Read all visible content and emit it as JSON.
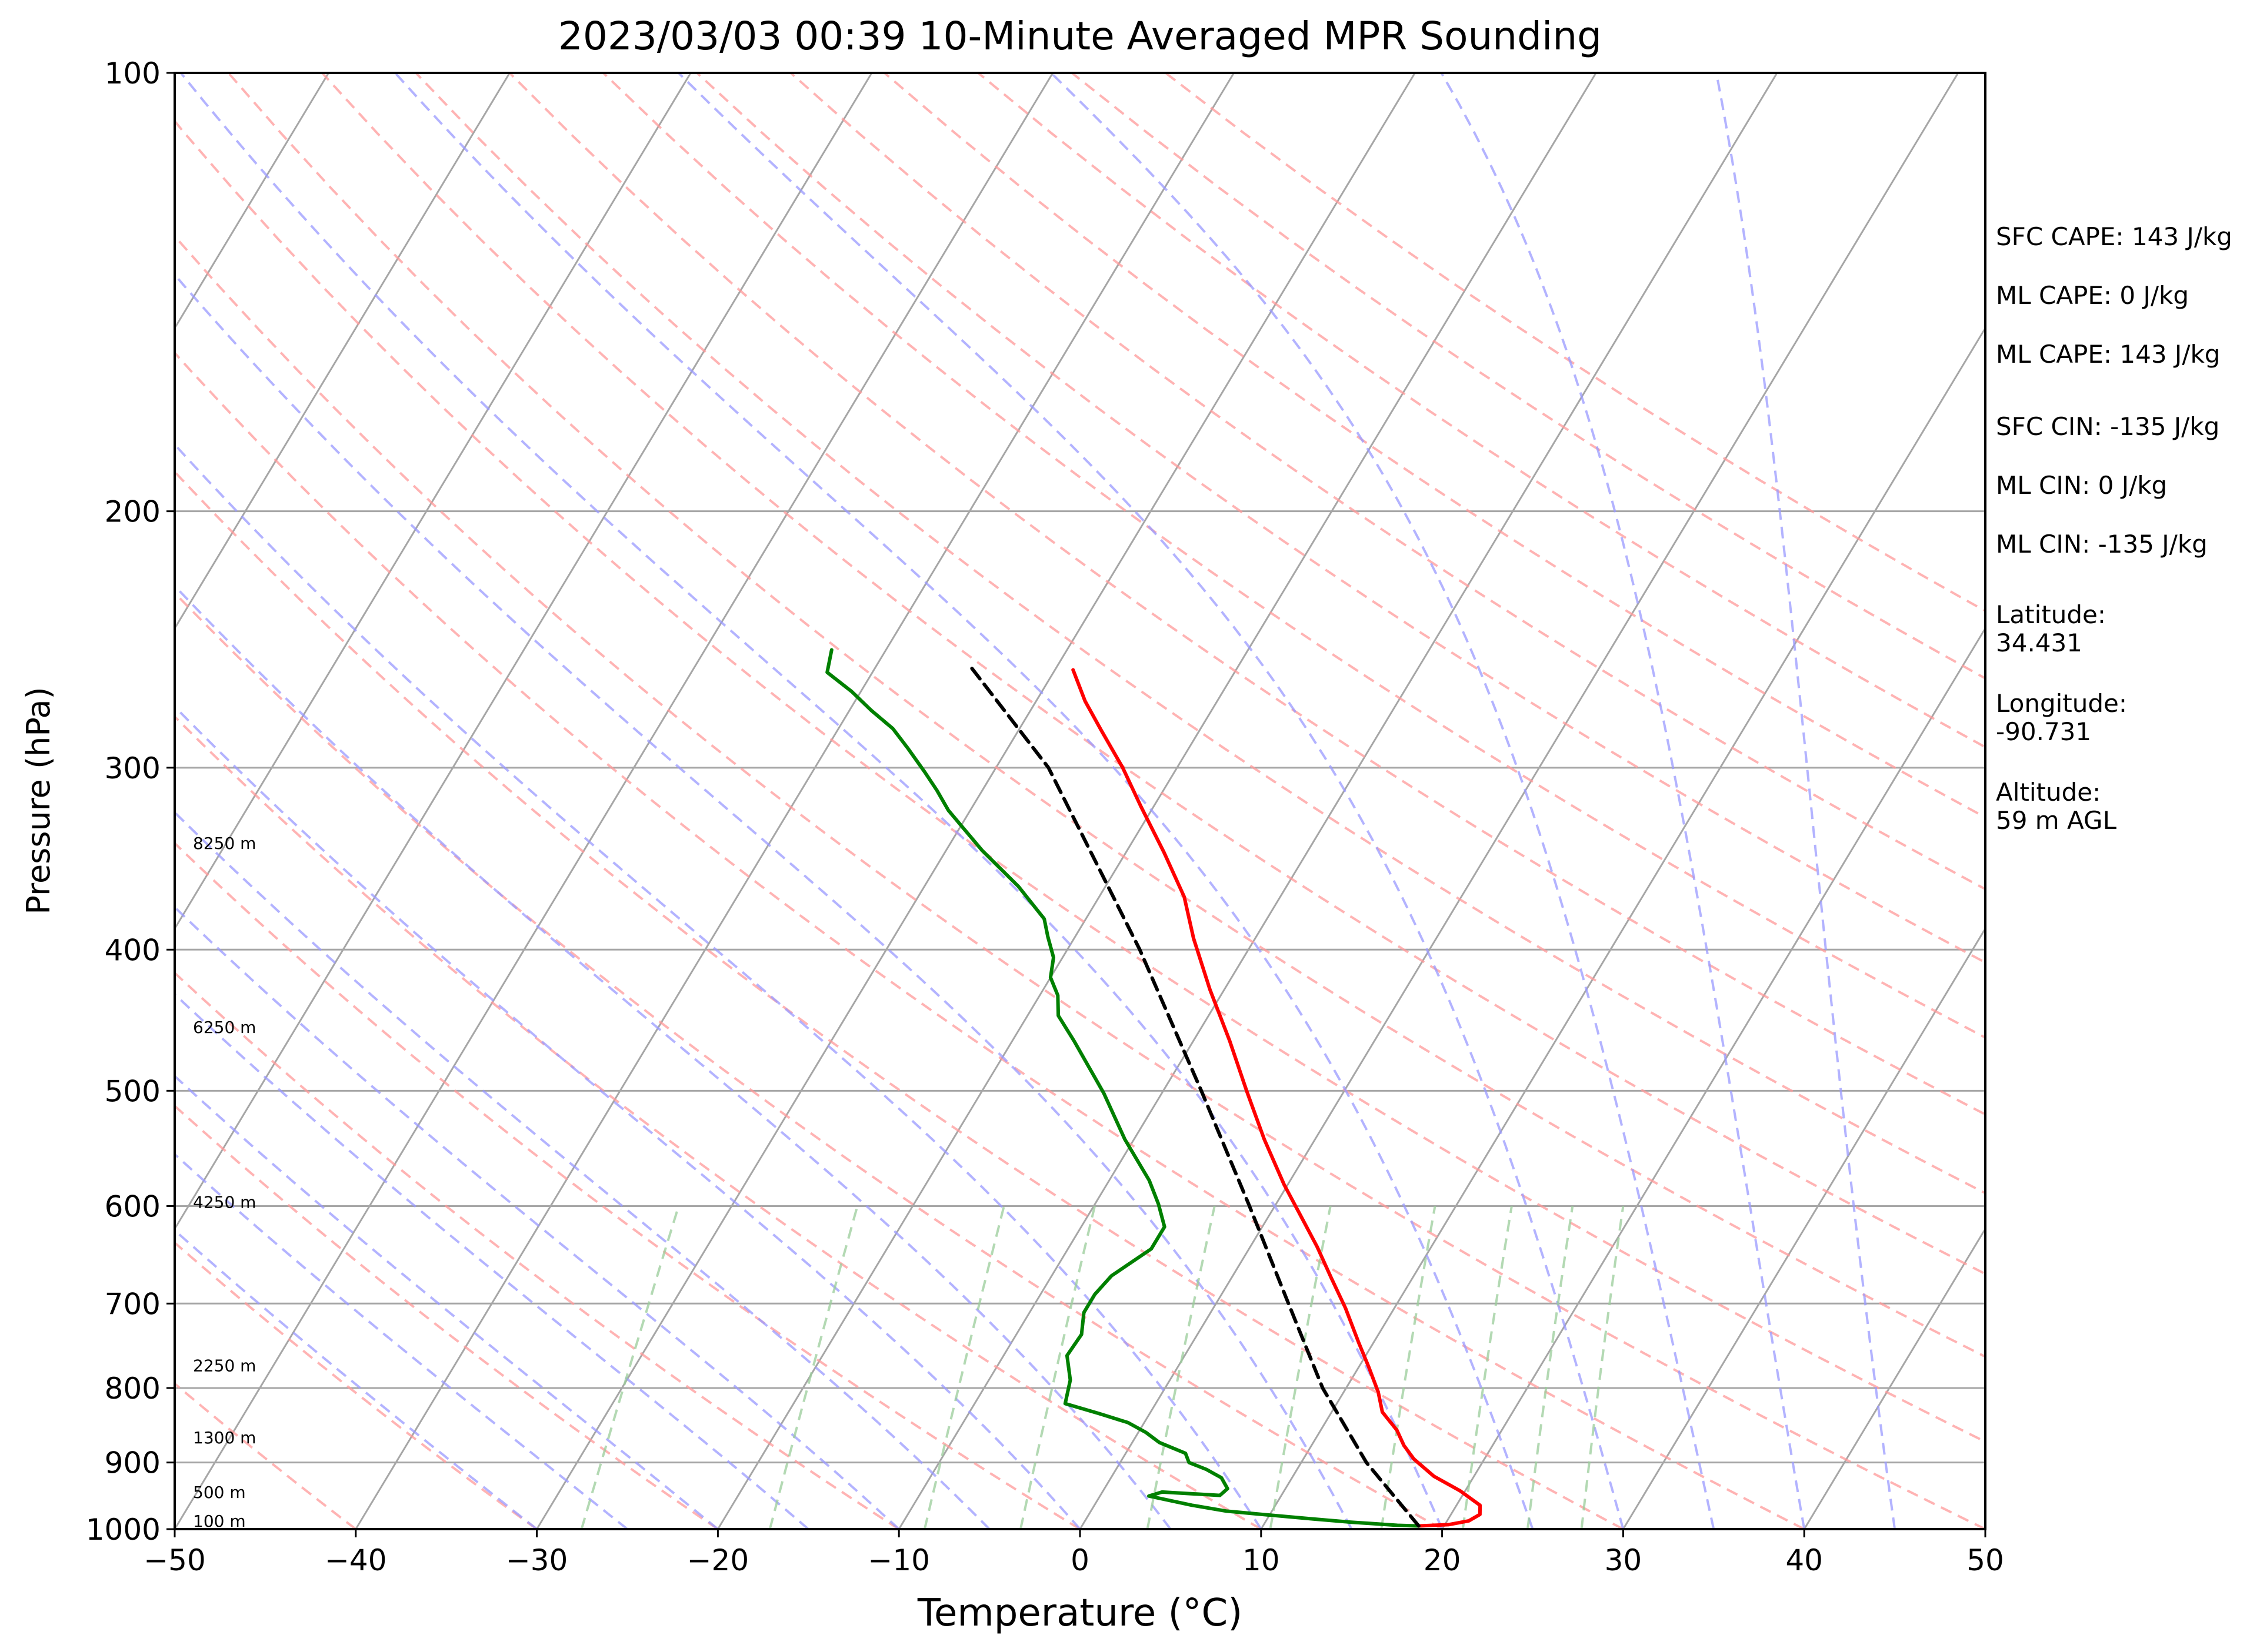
{
  "chart_data": {
    "type": "line",
    "title": "2023/03/03 00:39 10-Minute Averaged MPR Sounding",
    "xlabel": "Temperature (°C)",
    "ylabel": "Pressure (hPa)",
    "xlim": [
      -50,
      50
    ],
    "ylim": [
      1000,
      100
    ],
    "y_scale": "log",
    "skew_per_decade_of_pressure": 48.5,
    "grid": true,
    "x_ticks": [
      -50,
      -40,
      -30,
      -20,
      -10,
      0,
      10,
      20,
      30,
      40,
      50
    ],
    "x_tick_labels": [
      "−50",
      "−40",
      "−30",
      "−20",
      "−10",
      "0",
      "10",
      "20",
      "30",
      "40",
      "50"
    ],
    "y_ticks": [
      1000,
      900,
      800,
      700,
      600,
      500,
      400,
      300,
      200,
      100
    ],
    "y_tick_labels": [
      "1000",
      "900",
      "800",
      "700",
      "600",
      "500",
      "400",
      "300",
      "200",
      "100"
    ],
    "height_labels": [
      {
        "label": "100 m",
        "pressure": 987
      },
      {
        "label": "500 m",
        "pressure": 943
      },
      {
        "label": "1300 m",
        "pressure": 865
      },
      {
        "label": "2250 m",
        "pressure": 772
      },
      {
        "label": "4250 m",
        "pressure": 596
      },
      {
        "label": "6250 m",
        "pressure": 452
      },
      {
        "label": "8250 m",
        "pressure": 338
      }
    ],
    "series": [
      {
        "color": "#ff0000",
        "style": "solid",
        "points": [
          [
            18.6,
            995
          ],
          [
            20.2,
            993
          ],
          [
            21.2,
            987
          ],
          [
            21.6,
            977
          ],
          [
            21.3,
            963
          ],
          [
            19.7,
            941
          ],
          [
            17.8,
            920
          ],
          [
            16.1,
            895
          ],
          [
            15.1,
            876
          ],
          [
            14.2,
            855
          ],
          [
            12.8,
            831
          ],
          [
            11.9,
            805
          ],
          [
            10.6,
            775
          ],
          [
            9.2,
            745
          ],
          [
            7.3,
            705
          ],
          [
            5.5,
            672
          ],
          [
            3.7,
            640
          ],
          [
            1.8,
            610
          ],
          [
            -0.2,
            580
          ],
          [
            -2.8,
            540
          ],
          [
            -5.4,
            500
          ],
          [
            -8.0,
            462
          ],
          [
            -10.8,
            426
          ],
          [
            -13.4,
            393
          ],
          [
            -15.3,
            368
          ],
          [
            -17.9,
            343
          ],
          [
            -20.7,
            319
          ],
          [
            -23.0,
            300
          ],
          [
            -25.4,
            283
          ],
          [
            -27.3,
            270
          ],
          [
            -29.0,
            257
          ]
        ],
        "data_label": ""
      },
      {
        "color": "#008000",
        "style": "solid",
        "points": [
          [
            18.6,
            995
          ],
          [
            17.4,
            994
          ],
          [
            15.8,
            991
          ],
          [
            14.7,
            989
          ],
          [
            12.5,
            984
          ],
          [
            10.0,
            978
          ],
          [
            7.5,
            972
          ],
          [
            5.4,
            963
          ],
          [
            2.7,
            949
          ],
          [
            3.3,
            943
          ],
          [
            6.6,
            948
          ],
          [
            6.8,
            938
          ],
          [
            6.1,
            922
          ],
          [
            5.0,
            910
          ],
          [
            3.8,
            900
          ],
          [
            3.3,
            887
          ],
          [
            1.5,
            872
          ],
          [
            0.4,
            858
          ],
          [
            -0.9,
            845
          ],
          [
            -2.8,
            833
          ],
          [
            -5.0,
            820
          ],
          [
            -5.5,
            790
          ],
          [
            -6.5,
            760
          ],
          [
            -6.4,
            735
          ],
          [
            -7.0,
            710
          ],
          [
            -7.0,
            690
          ],
          [
            -6.7,
            670
          ],
          [
            -5.4,
            642
          ],
          [
            -5.4,
            620
          ],
          [
            -6.5,
            598
          ],
          [
            -7.8,
            576
          ],
          [
            -10.5,
            540
          ],
          [
            -13.2,
            502
          ],
          [
            -16.6,
            462
          ],
          [
            -18.3,
            444
          ],
          [
            -19.0,
            430
          ],
          [
            -20.0,
            418
          ],
          [
            -20.5,
            405
          ],
          [
            -21.5,
            392
          ],
          [
            -22.3,
            381
          ],
          [
            -24.8,
            362
          ],
          [
            -28.0,
            342
          ],
          [
            -29.8,
            330
          ],
          [
            -31.2,
            321
          ],
          [
            -32.5,
            311
          ],
          [
            -33.8,
            302
          ],
          [
            -35.5,
            291
          ],
          [
            -37.0,
            282
          ],
          [
            -38.8,
            274
          ],
          [
            -40.5,
            266
          ],
          [
            -42.5,
            258
          ],
          [
            -43.0,
            249
          ]
        ],
        "data_label": ""
      },
      {
        "color": "#000000",
        "style": "dashed",
        "points": [
          [
            18.6,
            995
          ],
          [
            13.6,
            900
          ],
          [
            8.7,
            800
          ],
          [
            4.0,
            700
          ],
          [
            -1.4,
            600
          ],
          [
            -7.9,
            500
          ],
          [
            -16.0,
            400
          ],
          [
            -27.1,
            300
          ],
          [
            -34.9,
            255
          ]
        ],
        "data_label": ""
      }
    ]
  },
  "annotations": {
    "sfc_cape": "SFC CAPE: 143 J/kg",
    "ml_cape": "ML CAPE: 0 J/kg",
    "mu_cape": "ML CAPE: 143 J/kg",
    "sfc_cin": "SFC CIN: -135 J/kg",
    "ml_cin": "ML CIN: 0 J/kg",
    "mu_cin": "ML CIN: -135 J/kg",
    "lat_label": "Latitude:",
    "lat_value": "34.431",
    "lon_label": "Longitude:",
    "lon_value": "-90.731",
    "alt_label": "Altitude:",
    "alt_value": "59 m AGL"
  },
  "colors": {
    "isotherm": "#a6a6a6",
    "dry_adiabat": "#ff9999",
    "moist_adiabat": "#9999ff",
    "mixing_ratio": "#99cc99"
  }
}
